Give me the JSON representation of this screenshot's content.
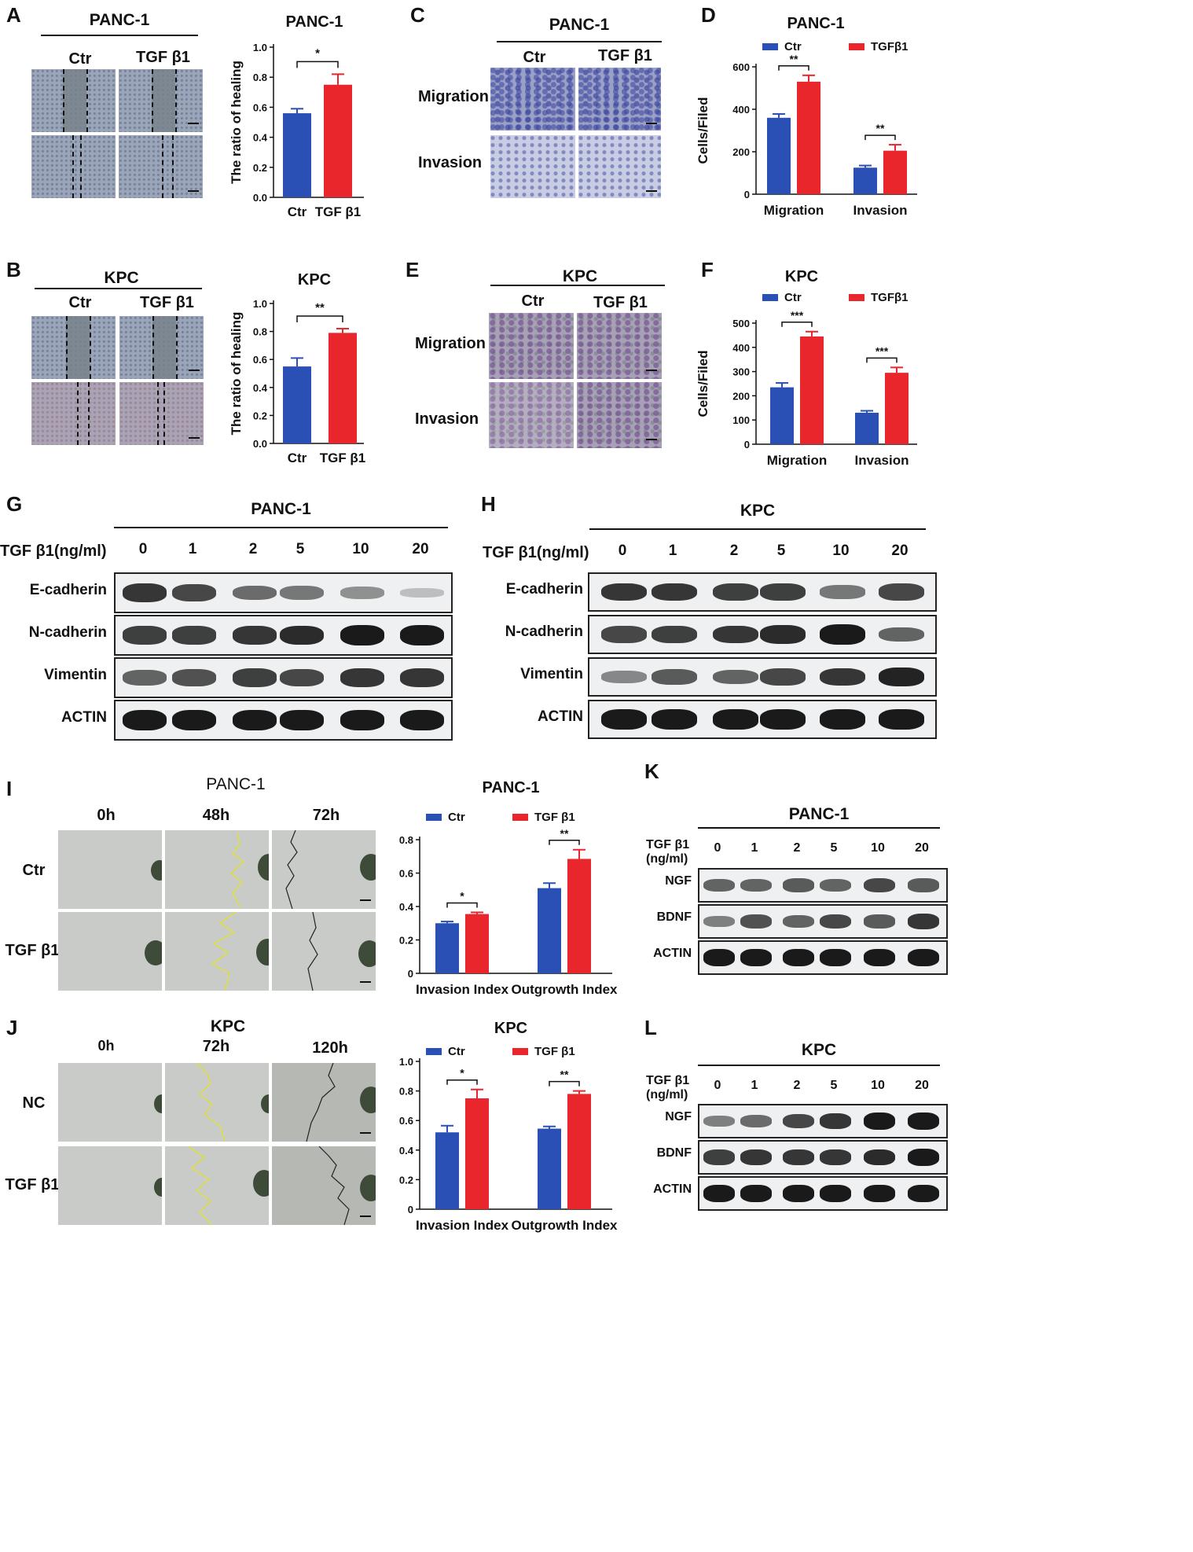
{
  "panels": {
    "A": {
      "letter": "A",
      "micro_title": "PANC-1",
      "cols": [
        "Ctr",
        "TGF β1"
      ]
    },
    "B": {
      "letter": "B",
      "micro_title": "KPC",
      "cols": [
        "Ctr",
        "TGF β1"
      ]
    },
    "C": {
      "letter": "C",
      "micro_title": "PANC-1",
      "cols": [
        "Ctr",
        "TGF β1"
      ],
      "rows": [
        "Migration",
        "Invasion"
      ]
    },
    "E": {
      "letter": "E",
      "micro_title": "KPC",
      "cols": [
        "Ctr",
        "TGF β1"
      ],
      "rows": [
        "Migration",
        "Invasion"
      ]
    },
    "D": {
      "letter": "D"
    },
    "F": {
      "letter": "F"
    },
    "G": {
      "letter": "G",
      "title": "PANC-1",
      "dose_label": "TGF β1(ng/ml)",
      "doses": [
        "0",
        "1",
        "2",
        "5",
        "10",
        "20"
      ],
      "proteins": [
        "E-cadherin",
        "N-cadherin",
        "Vimentin",
        "ACTIN"
      ],
      "band_levels": [
        [
          0.85,
          0.75,
          0.55,
          0.5,
          0.35,
          0.1
        ],
        [
          0.8,
          0.8,
          0.85,
          0.9,
          1.0,
          1.0
        ],
        [
          0.6,
          0.7,
          0.8,
          0.75,
          0.85,
          0.85
        ],
        [
          1.0,
          1.0,
          1.0,
          1.0,
          1.0,
          1.0
        ]
      ]
    },
    "H": {
      "letter": "H",
      "title": "KPC",
      "dose_label": "TGF β1(ng/ml)",
      "doses": [
        "0",
        "1",
        "2",
        "5",
        "10",
        "20"
      ],
      "proteins": [
        "E-cadherin",
        "N-cadherin",
        "Vimentin",
        "ACTIN"
      ],
      "band_levels": [
        [
          0.85,
          0.85,
          0.8,
          0.8,
          0.5,
          0.75
        ],
        [
          0.75,
          0.8,
          0.85,
          0.9,
          1.0,
          0.6
        ],
        [
          0.4,
          0.65,
          0.6,
          0.75,
          0.85,
          0.95
        ],
        [
          1.0,
          1.0,
          1.0,
          1.0,
          1.0,
          1.0
        ]
      ]
    },
    "I": {
      "letter": "I",
      "micro_title": "PANC-1",
      "cols": [
        "0h",
        "48h",
        "72h"
      ],
      "rows": [
        "Ctr",
        "TGF β1"
      ]
    },
    "J": {
      "letter": "J",
      "micro_title": "KPC",
      "cols": [
        "0h",
        "72h",
        "120h"
      ],
      "rows": [
        "NC",
        "TGF β1"
      ]
    },
    "K": {
      "letter": "K",
      "title": "PANC-1",
      "dose_label_1": "TGF β1",
      "dose_label_2": "(ng/ml)",
      "doses": [
        "0",
        "1",
        "2",
        "5",
        "10",
        "20"
      ],
      "proteins": [
        "NGF",
        "BDNF",
        "ACTIN"
      ],
      "band_levels": [
        [
          0.6,
          0.6,
          0.65,
          0.6,
          0.75,
          0.65
        ],
        [
          0.45,
          0.7,
          0.6,
          0.75,
          0.65,
          0.85
        ],
        [
          1.0,
          1.0,
          1.0,
          1.0,
          1.0,
          1.0
        ]
      ]
    },
    "L": {
      "letter": "L",
      "title": "KPC",
      "dose_label_1": "TGF β1",
      "dose_label_2": "(ng/ml)",
      "doses": [
        "0",
        "1",
        "2",
        "5",
        "10",
        "20"
      ],
      "proteins": [
        "NGF",
        "BDNF",
        "ACTIN"
      ],
      "band_levels": [
        [
          0.45,
          0.55,
          0.75,
          0.85,
          1.0,
          1.0
        ],
        [
          0.8,
          0.85,
          0.85,
          0.85,
          0.9,
          1.0
        ],
        [
          1.0,
          1.0,
          1.0,
          1.0,
          1.0,
          1.0
        ]
      ]
    }
  },
  "colors": {
    "ctr": "#2a4fb5",
    "tgf": "#e8262c",
    "axis": "#111111"
  },
  "chart_data": [
    {
      "id": "A",
      "type": "bar",
      "title": "PANC-1",
      "ylabel": "The ratio of healing",
      "categories": [
        "Ctr",
        "TGF β1"
      ],
      "values": [
        0.56,
        0.75
      ],
      "errors": [
        0.03,
        0.07
      ],
      "ylim": [
        0,
        1.0
      ],
      "yticks": [
        "0.0",
        "0.2",
        "0.4",
        "0.6",
        "0.8",
        "1.0"
      ],
      "significance": "*"
    },
    {
      "id": "B",
      "type": "bar",
      "title": "KPC",
      "ylabel": "The ratio of healing",
      "categories": [
        "Ctr",
        "TGF β1"
      ],
      "values": [
        0.55,
        0.79
      ],
      "errors": [
        0.06,
        0.03
      ],
      "ylim": [
        0,
        1.0
      ],
      "yticks": [
        "0.0",
        "0.2",
        "0.4",
        "0.6",
        "0.8",
        "1.0"
      ],
      "significance": "**"
    },
    {
      "id": "D",
      "type": "bar",
      "title": "PANC-1",
      "ylabel": "Cells/Filed",
      "categories": [
        "Migration",
        "Invasion"
      ],
      "series": [
        {
          "name": "Ctr",
          "values": [
            360,
            125
          ],
          "errors": [
            18,
            10
          ]
        },
        {
          "name": "TGFβ1",
          "values": [
            530,
            205
          ],
          "errors": [
            30,
            28
          ]
        }
      ],
      "ylim": [
        0,
        600
      ],
      "yticks": [
        "0",
        "200",
        "400",
        "600"
      ],
      "significance": [
        "**",
        "**"
      ],
      "legend": "top"
    },
    {
      "id": "F",
      "type": "bar",
      "title": "KPC",
      "ylabel": "Cells/Filed",
      "categories": [
        "Migration",
        "Invasion"
      ],
      "series": [
        {
          "name": "Ctr",
          "values": [
            235,
            130
          ],
          "errors": [
            18,
            8
          ]
        },
        {
          "name": "TGFβ1",
          "values": [
            445,
            295
          ],
          "errors": [
            20,
            22
          ]
        }
      ],
      "ylim": [
        0,
        500
      ],
      "yticks": [
        "0",
        "100",
        "200",
        "300",
        "400",
        "500"
      ],
      "significance": [
        "***",
        "***"
      ],
      "legend": "top"
    },
    {
      "id": "I",
      "type": "bar",
      "title": "PANC-1",
      "ylabel": "",
      "categories": [
        "Invasion Index",
        "Outgrowth Index"
      ],
      "series": [
        {
          "name": "Ctr",
          "values": [
            0.3,
            0.51
          ],
          "errors": [
            0.01,
            0.03
          ]
        },
        {
          "name": "TGF β1",
          "values": [
            0.355,
            0.685
          ],
          "errors": [
            0.01,
            0.055
          ]
        }
      ],
      "ylim": [
        0,
        0.8
      ],
      "yticks": [
        "0",
        "0.2",
        "0.4",
        "0.6",
        "0.8"
      ],
      "significance": [
        "*",
        "**"
      ],
      "legend": "top"
    },
    {
      "id": "J",
      "type": "bar",
      "title": "KPC",
      "ylabel": "",
      "categories": [
        "Invasion Index",
        "Outgrowth Index"
      ],
      "series": [
        {
          "name": "Ctr",
          "values": [
            0.52,
            0.545
          ],
          "errors": [
            0.045,
            0.015
          ]
        },
        {
          "name": "TGF β1",
          "values": [
            0.75,
            0.78
          ],
          "errors": [
            0.06,
            0.02
          ]
        }
      ],
      "ylim": [
        0,
        1.0
      ],
      "yticks": [
        "0",
        "0.2",
        "0.4",
        "0.6",
        "0.8",
        "1.0"
      ],
      "significance": [
        "*",
        "**"
      ],
      "legend": "top"
    }
  ]
}
